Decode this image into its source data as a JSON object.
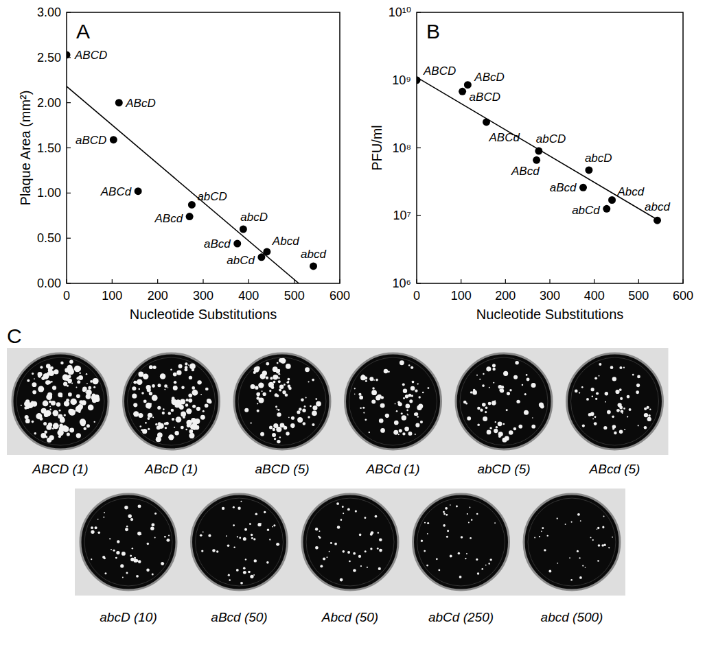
{
  "chart_data": [
    {
      "type": "scatter",
      "title": "A",
      "x_label": "Nucleotide Substitutions",
      "y_label": "Plaque Area (mm²)",
      "xlim": [
        0,
        600
      ],
      "xticks": [
        0,
        100,
        200,
        300,
        400,
        500,
        600
      ],
      "ylim": [
        0,
        3
      ],
      "yticks": [
        {
          "value": 0,
          "label": "0.00"
        },
        {
          "value": 0.5,
          "label": "0.50"
        },
        {
          "value": 1,
          "label": "1.00"
        },
        {
          "value": 1.5,
          "label": "1.50"
        },
        {
          "value": 2,
          "label": "2.00"
        },
        {
          "value": 2.5,
          "label": "2.50"
        },
        {
          "value": 3,
          "label": "3.00"
        }
      ],
      "series": [
        {
          "type": "scatter",
          "marker": "circle",
          "color": "#000000",
          "labels": [
            "ABCD",
            "ABcD",
            "aBCD",
            "ABCd",
            "abCD",
            "ABcd",
            "abcD",
            "aBcd",
            "abCd",
            "Abcd",
            "abcd"
          ],
          "x": [
            0,
            115,
            103,
            157,
            275,
            270,
            388,
            375,
            428,
            440,
            542
          ],
          "values": [
            2.53,
            2.0,
            1.59,
            1.02,
            0.87,
            0.74,
            0.6,
            0.44,
            0.29,
            0.35,
            0.19
          ]
        },
        {
          "type": "line",
          "line_style": "solid",
          "color": "#000000",
          "x": [
            0,
            510
          ],
          "values": [
            2.18,
            0
          ]
        }
      ]
    },
    {
      "type": "scatter",
      "title": "B",
      "x_label": "Nucleotide Substitutions",
      "y_label": "PFU/ml",
      "log": "y",
      "xlim": [
        0,
        600
      ],
      "xticks": [
        0,
        100,
        200,
        300,
        400,
        500,
        600
      ],
      "ylim": [
        1000000,
        10000000000
      ],
      "yticks": [
        {
          "value": 1000000,
          "label": "10⁶"
        },
        {
          "value": 10000000,
          "label": "10⁷"
        },
        {
          "value": 100000000,
          "label": "10⁸"
        },
        {
          "value": 1000000000,
          "label": "10⁹"
        },
        {
          "value": 10000000000,
          "label": "10¹⁰"
        }
      ],
      "series": [
        {
          "type": "scatter",
          "marker": "circle",
          "color": "#000000",
          "labels": [
            "ABCD",
            "ABcD",
            "aBCD",
            "ABCd",
            "abCD",
            "ABcd",
            "abcD",
            "aBcd",
            "Abcd",
            "abCd",
            "abcd"
          ],
          "x": [
            0,
            115,
            103,
            157,
            275,
            270,
            388,
            375,
            440,
            428,
            542
          ],
          "values": [
            1000000000,
            850000000,
            680000000,
            240000000,
            90000000,
            66000000,
            47000000,
            26000000,
            17000000,
            12600000,
            8500000
          ]
        },
        {
          "type": "line",
          "line_style": "solid",
          "color": "#000000",
          "x": [
            0,
            545
          ],
          "values": [
            1100000000,
            8500000
          ]
        }
      ]
    }
  ],
  "panel_c": {
    "title": "C",
    "plates": [
      "ABCD (1)",
      "ABcD (1)",
      "aBCD (5)",
      "ABCd (1)",
      "abCD (5)",
      "ABcd (5)",
      "abcD (10)",
      "aBcd (50)",
      "Abcd (50)",
      "abCd (250)",
      "abcd (500)"
    ]
  }
}
